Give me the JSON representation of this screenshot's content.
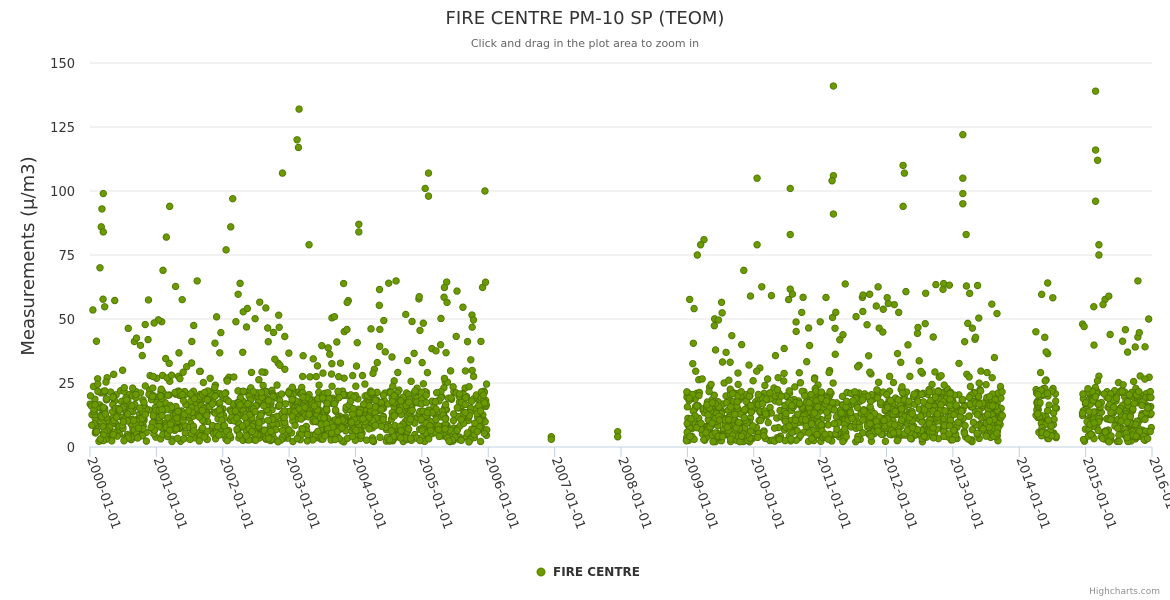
{
  "chart_data": {
    "type": "scatter",
    "title": "FIRE CENTRE PM-10 SP (TEOM)",
    "subtitle": "Click and drag in the plot area to zoom in",
    "ylabel": "Measurements (μ/m3)",
    "xlabel": "",
    "ylim": [
      0,
      150
    ],
    "yticks": [
      "0",
      "25",
      "50",
      "75",
      "100",
      "125",
      "150"
    ],
    "xlim": [
      2000.0,
      2016.0
    ],
    "xticks": [
      "2000-01-01",
      "2001-01-01",
      "2002-01-01",
      "2003-01-01",
      "2004-01-01",
      "2005-01-01",
      "2006-01-01",
      "2007-01-01",
      "2008-01-01",
      "2009-01-01",
      "2010-01-01",
      "2011-01-01",
      "2012-01-01",
      "2013-01-01",
      "2014-01-01",
      "2015-01-01",
      "2016-01-01"
    ],
    "grid": true,
    "legend_position": "bottom-center",
    "color": "#6a9a00",
    "series": [
      {
        "name": "FIRE CENTRE",
        "notable_points": [
          {
            "x": 2000.2,
            "y": 99
          },
          {
            "x": 2000.18,
            "y": 93
          },
          {
            "x": 2000.17,
            "y": 86
          },
          {
            "x": 2000.2,
            "y": 84
          },
          {
            "x": 2000.15,
            "y": 70
          },
          {
            "x": 2001.2,
            "y": 94
          },
          {
            "x": 2001.15,
            "y": 82
          },
          {
            "x": 2001.1,
            "y": 69
          },
          {
            "x": 2002.15,
            "y": 97
          },
          {
            "x": 2002.12,
            "y": 86
          },
          {
            "x": 2002.05,
            "y": 77
          },
          {
            "x": 2002.9,
            "y": 107
          },
          {
            "x": 2003.15,
            "y": 132
          },
          {
            "x": 2003.12,
            "y": 120
          },
          {
            "x": 2003.14,
            "y": 117
          },
          {
            "x": 2003.3,
            "y": 79
          },
          {
            "x": 2004.05,
            "y": 87
          },
          {
            "x": 2004.05,
            "y": 84
          },
          {
            "x": 2005.1,
            "y": 107
          },
          {
            "x": 2005.05,
            "y": 101
          },
          {
            "x": 2005.1,
            "y": 98
          },
          {
            "x": 2005.95,
            "y": 100
          },
          {
            "x": 2006.95,
            "y": 4
          },
          {
            "x": 2006.95,
            "y": 3
          },
          {
            "x": 2007.95,
            "y": 6
          },
          {
            "x": 2007.95,
            "y": 4
          },
          {
            "x": 2009.25,
            "y": 81
          },
          {
            "x": 2009.2,
            "y": 79
          },
          {
            "x": 2009.15,
            "y": 75
          },
          {
            "x": 2009.85,
            "y": 69
          },
          {
            "x": 2010.05,
            "y": 105
          },
          {
            "x": 2010.05,
            "y": 79
          },
          {
            "x": 2010.55,
            "y": 101
          },
          {
            "x": 2010.55,
            "y": 83
          },
          {
            "x": 2011.2,
            "y": 141
          },
          {
            "x": 2011.2,
            "y": 106
          },
          {
            "x": 2011.18,
            "y": 104
          },
          {
            "x": 2011.2,
            "y": 91
          },
          {
            "x": 2012.25,
            "y": 110
          },
          {
            "x": 2012.27,
            "y": 107
          },
          {
            "x": 2012.25,
            "y": 94
          },
          {
            "x": 2013.15,
            "y": 122
          },
          {
            "x": 2013.15,
            "y": 105
          },
          {
            "x": 2013.15,
            "y": 99
          },
          {
            "x": 2013.15,
            "y": 95
          },
          {
            "x": 2013.2,
            "y": 83
          },
          {
            "x": 2014.25,
            "y": 45
          },
          {
            "x": 2015.15,
            "y": 139
          },
          {
            "x": 2015.15,
            "y": 116
          },
          {
            "x": 2015.18,
            "y": 112
          },
          {
            "x": 2015.15,
            "y": 96
          },
          {
            "x": 2015.2,
            "y": 79
          },
          {
            "x": 2015.2,
            "y": 75
          },
          {
            "x": 2015.95,
            "y": 50
          }
        ],
        "dense_ranges": [
          {
            "x_start": 2000.0,
            "x_end": 2005.98,
            "y_min": 2,
            "y_max": 30,
            "density": "high"
          },
          {
            "x_start": 2008.98,
            "x_end": 2013.75,
            "y_min": 2,
            "y_max": 30,
            "density": "high"
          },
          {
            "x_start": 2014.25,
            "x_end": 2014.6,
            "y_min": 3,
            "y_max": 30,
            "density": "medium"
          },
          {
            "x_start": 2014.95,
            "x_end": 2016.0,
            "y_min": 2,
            "y_max": 30,
            "density": "high"
          }
        ]
      }
    ],
    "credits": "Highcharts.com"
  }
}
